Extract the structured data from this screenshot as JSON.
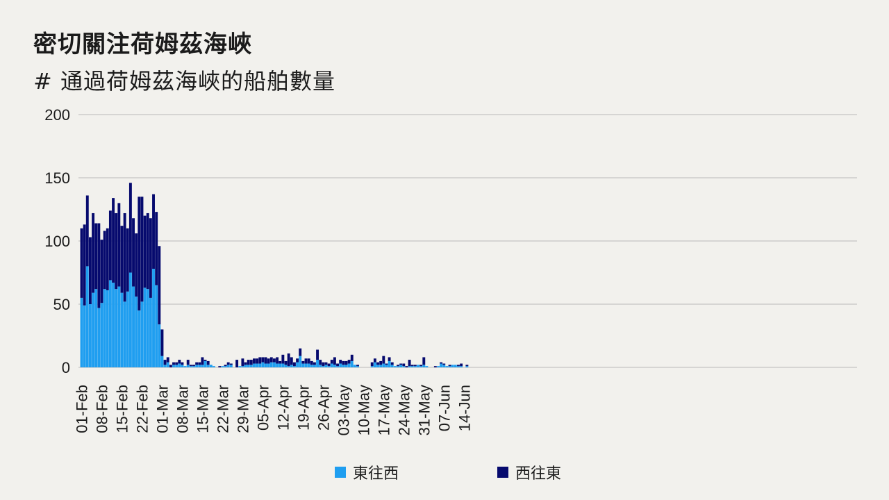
{
  "title": "密切關注荷姆茲海峽",
  "subtitle": "# 通過荷姆茲海峽的船舶數量",
  "colors": {
    "eastwest": "#1f9ef0",
    "westeast": "#060a6e",
    "grid": "#b9b9b9",
    "background": "#f2f1ed"
  },
  "legend": [
    {
      "label": "東往西",
      "color": "#1f9ef0"
    },
    {
      "label": "西往東",
      "color": "#060a6e"
    }
  ],
  "chart_data": {
    "type": "bar",
    "stacked": true,
    "start_date": "01-Feb",
    "xlim": [
      "01-Feb",
      "14-Jun"
    ],
    "ylim": [
      0,
      200
    ],
    "yticks": [
      0,
      50,
      100,
      150,
      200
    ],
    "xticks": [
      "01-Feb",
      "08-Feb",
      "15-Feb",
      "22-Feb",
      "01-Mar",
      "08-Mar",
      "15-Mar",
      "22-Mar",
      "29-Mar",
      "05-Apr",
      "12-Apr",
      "19-Apr",
      "26-Apr",
      "03-May",
      "10-May",
      "17-May",
      "24-May",
      "31-May",
      "07-Jun",
      "14-Jun"
    ],
    "grid": true,
    "legend_position": "bottom",
    "series": [
      {
        "name": "東往西",
        "values": [
          55,
          49,
          80,
          50,
          59,
          62,
          47,
          51,
          62,
          61,
          69,
          67,
          62,
          64,
          59,
          52,
          60,
          75,
          64,
          56,
          45,
          52,
          63,
          62,
          55,
          78,
          65,
          34,
          9,
          2,
          4,
          0,
          2,
          2,
          3,
          2,
          1,
          2,
          1,
          1,
          2,
          2,
          2,
          5,
          2,
          2,
          1,
          0,
          0,
          1,
          1,
          2,
          2,
          0,
          0,
          1,
          1,
          2,
          2,
          2,
          3,
          3,
          3,
          4,
          3,
          3,
          4,
          4,
          3,
          3,
          3,
          2,
          1,
          2,
          1,
          4,
          9,
          3,
          3,
          3,
          2,
          2,
          6,
          2,
          1,
          2,
          1,
          3,
          2,
          1,
          3,
          2,
          2,
          3,
          5,
          2,
          1,
          0,
          0,
          0,
          0,
          1,
          4,
          2,
          2,
          3,
          2,
          5,
          2,
          1,
          1,
          2,
          1,
          0,
          1,
          1,
          1,
          2,
          1,
          2,
          1,
          0,
          0,
          0,
          1,
          3,
          2,
          1,
          1,
          2,
          2,
          1,
          1,
          0,
          1
        ]
      },
      {
        "name": "西往東",
        "values": [
          55,
          64,
          56,
          53,
          63,
          52,
          67,
          50,
          46,
          49,
          55,
          67,
          60,
          66,
          53,
          70,
          50,
          71,
          54,
          50,
          90,
          83,
          57,
          60,
          63,
          59,
          58,
          62,
          21,
          4,
          4,
          2,
          2,
          2,
          3,
          2,
          0,
          4,
          1,
          1,
          2,
          2,
          6,
          1,
          3,
          0,
          0,
          0,
          1,
          0,
          1,
          2,
          1,
          0,
          6,
          0,
          6,
          2,
          4,
          4,
          4,
          4,
          5,
          4,
          5,
          4,
          4,
          3,
          5,
          2,
          7,
          3,
          10,
          6,
          3,
          3,
          6,
          2,
          4,
          4,
          3,
          2,
          8,
          4,
          3,
          2,
          2,
          3,
          6,
          2,
          3,
          3,
          3,
          3,
          5,
          0,
          1,
          0,
          0,
          0,
          0,
          3,
          3,
          2,
          3,
          6,
          1,
          3,
          2,
          0,
          1,
          1,
          2,
          1,
          5,
          1,
          1,
          0,
          1,
          6,
          0,
          0,
          0,
          1,
          0,
          1,
          1,
          0,
          1,
          0,
          0,
          1,
          2,
          0,
          1
        ]
      }
    ]
  }
}
